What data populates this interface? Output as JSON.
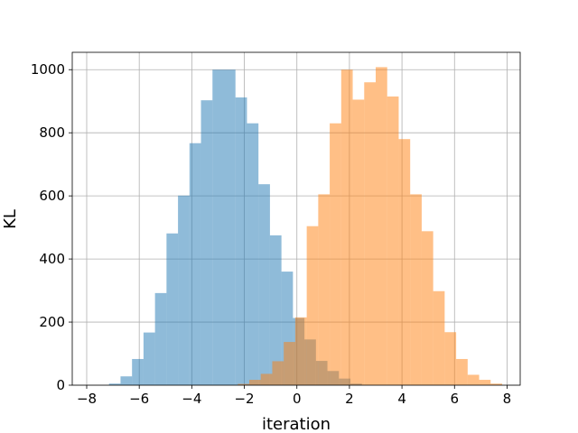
{
  "chart_data": {
    "type": "bar",
    "subtype": "histogram",
    "title": "",
    "xlabel": "iteration",
    "ylabel": "KL",
    "xlim": [
      -8.55,
      8.5
    ],
    "ylim": [
      0,
      1055
    ],
    "xticks": [
      -8,
      -6,
      -4,
      -2,
      0,
      2,
      4,
      6,
      8
    ],
    "yticks": [
      0,
      200,
      400,
      600,
      800,
      1000
    ],
    "grid": true,
    "legend": "none",
    "bin_width": 0.4375,
    "colors": [
      "#1f77b4",
      "#ff7f0e"
    ],
    "opacity": 0.5,
    "series": [
      {
        "bin_start": -7.15,
        "counts": [
          5,
          28,
          83,
          167,
          292,
          481,
          601,
          767,
          903,
          1000,
          1000,
          912,
          830,
          637,
          475,
          360,
          213,
          145,
          77,
          45,
          21,
          5
        ]
      },
      {
        "bin_start": -2.25,
        "counts": [
          4,
          17,
          36,
          76,
          137,
          215,
          504,
          605,
          830,
          1000,
          905,
          960,
          1008,
          915,
          780,
          605,
          488,
          298,
          168,
          83,
          33,
          17,
          5
        ]
      }
    ]
  }
}
